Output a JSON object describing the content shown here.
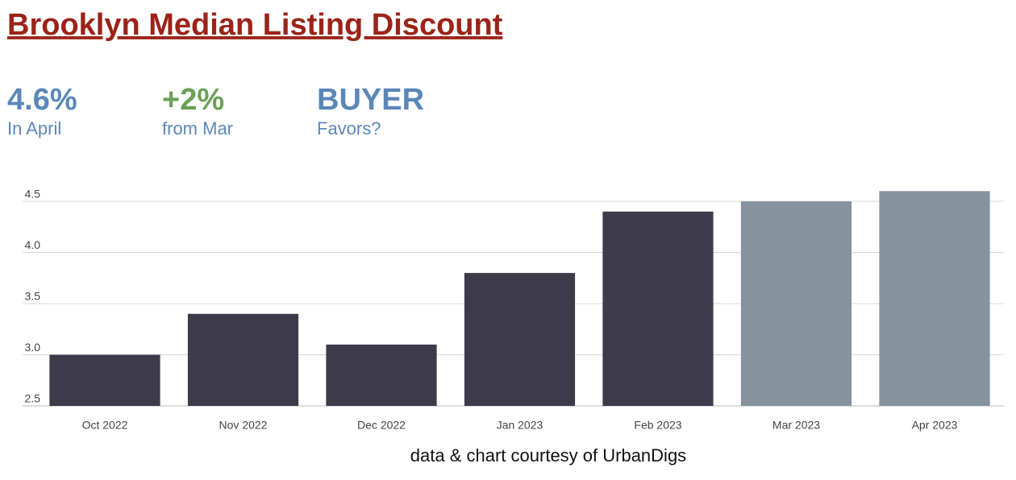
{
  "header": {
    "title": "Brooklyn Median Listing Discount"
  },
  "stats": [
    {
      "value": "4.6%",
      "label": "In April"
    },
    {
      "value": "+2%",
      "label": "from Mar"
    },
    {
      "value": "BUYER",
      "label": "Favors?"
    }
  ],
  "chart_data": {
    "type": "bar",
    "categories": [
      "Oct 2022",
      "Nov 2022",
      "Dec 2022",
      "Jan 2023",
      "Feb 2023",
      "Mar 2023",
      "Apr 2023"
    ],
    "values": [
      3.0,
      3.4,
      3.1,
      3.8,
      4.4,
      4.5,
      4.6
    ],
    "colors": [
      "#3d3b4a",
      "#3d3b4a",
      "#3d3b4a",
      "#3d3b4a",
      "#3d3b4a",
      "#87929f",
      "#87929f"
    ],
    "ylim": [
      2.5,
      4.65
    ],
    "yticks": [
      2.5,
      {
        "value": 3,
        "label": "3.0"
      },
      3.5,
      {
        "value": 4,
        "label": "4.0"
      },
      4.5
    ],
    "grid": true
  },
  "footer": "data & chart courtesy of UrbanDigs"
}
